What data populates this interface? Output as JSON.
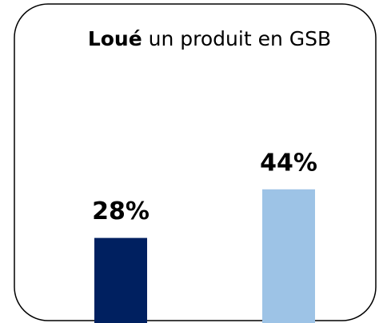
{
  "chart_data": {
    "type": "bar",
    "title": {
      "bold": "Loué",
      "rest": "un produit en GSB"
    },
    "categories": [
      null,
      null
    ],
    "values": [
      28,
      44
    ],
    "value_labels": [
      "28%",
      "44%"
    ],
    "colors": [
      "#002060",
      "#9dc3e6"
    ]
  }
}
